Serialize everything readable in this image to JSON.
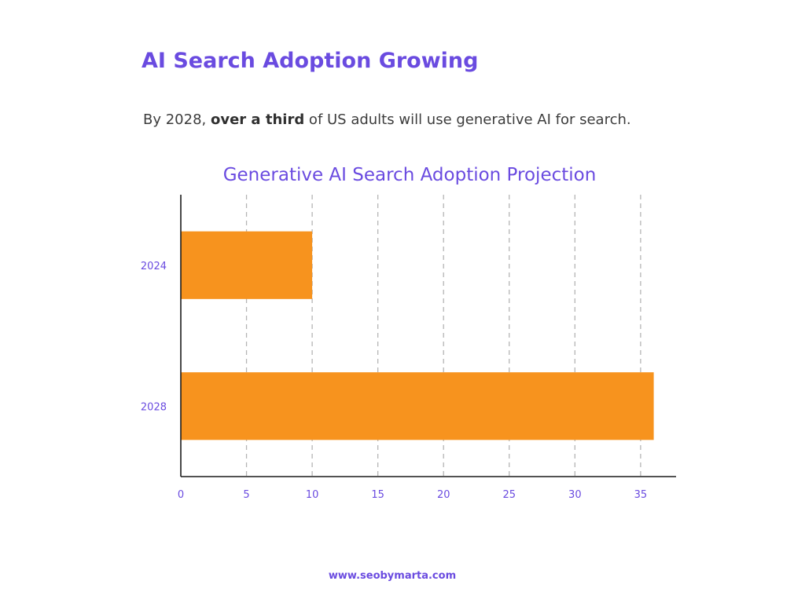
{
  "header": {
    "headline": "AI Search Adoption Growing",
    "subhead_pre": "By 2028, ",
    "subhead_bold": "over a third",
    "subhead_post": " of US adults will use generative AI for search."
  },
  "footer": {
    "text": "www.seobymarta.com"
  },
  "colors": {
    "accent": "#6a4be0",
    "bar": "#f7931e",
    "axis": "#1a1a1a",
    "grid": "#b5b5b5"
  },
  "chart_data": {
    "type": "bar",
    "orientation": "horizontal",
    "title": "Generative AI Search Adoption Projection",
    "categories": [
      "2024",
      "2028"
    ],
    "values": [
      10,
      36
    ],
    "xticks": [
      "0",
      "5",
      "10",
      "15",
      "20",
      "25",
      "30",
      "35"
    ],
    "xlim": [
      0,
      37.7
    ],
    "xlabel": "",
    "ylabel": "",
    "grid": "vertical-dashed"
  }
}
